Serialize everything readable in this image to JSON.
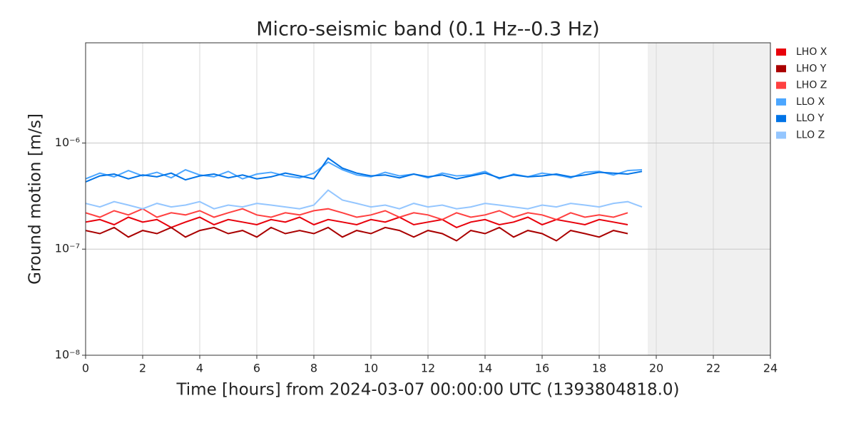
{
  "chart_data": {
    "type": "line",
    "title": "Micro-seismic band (0.1 Hz--0.3 Hz)",
    "x_label": "Time [hours] from 2024-03-07 00:00:00 UTC (1393804818.0)",
    "y_label": "Ground motion [m/s]",
    "log_y": true,
    "grid": true,
    "legend": "outside-right",
    "xlim": [
      0,
      24
    ],
    "xticks": [
      0,
      2,
      4,
      6,
      8,
      10,
      12,
      14,
      16,
      18,
      20,
      22,
      24
    ],
    "ylim": [
      1e-08,
      8.8e-06
    ],
    "yticks": [
      {
        "value": 1e-08,
        "label": "10⁻⁸"
      },
      {
        "value": 1e-07,
        "label": "10⁻⁷"
      },
      {
        "value": 1e-06,
        "label": "10⁻⁶"
      }
    ],
    "shaded_xlim": [
      19.7,
      24
    ],
    "x": [
      0,
      0.5,
      1,
      1.5,
      2,
      2.5,
      3,
      3.5,
      4,
      4.5,
      5,
      5.5,
      6,
      6.5,
      7,
      7.5,
      8,
      8.5,
      9,
      9.5,
      10,
      10.5,
      11,
      11.5,
      12,
      12.5,
      13,
      13.5,
      14,
      14.5,
      15,
      15.5,
      16,
      16.5,
      17,
      17.5,
      18,
      18.5,
      19,
      19.5
    ],
    "series": [
      {
        "name": "LHO X",
        "color": "#e8000b",
        "values": [
          1.8e-07,
          1.9e-07,
          1.7e-07,
          2e-07,
          1.8e-07,
          1.9e-07,
          1.6e-07,
          1.8e-07,
          2e-07,
          1.7e-07,
          1.9e-07,
          1.8e-07,
          1.7e-07,
          1.9e-07,
          1.8e-07,
          2e-07,
          1.7e-07,
          1.9e-07,
          1.8e-07,
          1.7e-07,
          1.9e-07,
          1.8e-07,
          2e-07,
          1.7e-07,
          1.8e-07,
          1.9e-07,
          1.6e-07,
          1.8e-07,
          1.9e-07,
          1.7e-07,
          1.8e-07,
          2e-07,
          1.7e-07,
          1.9e-07,
          1.8e-07,
          1.7e-07,
          1.9e-07,
          1.8e-07,
          1.7e-07,
          null
        ]
      },
      {
        "name": "LHO Y",
        "color": "#a90000",
        "values": [
          1.5e-07,
          1.4e-07,
          1.6e-07,
          1.3e-07,
          1.5e-07,
          1.4e-07,
          1.6e-07,
          1.3e-07,
          1.5e-07,
          1.6e-07,
          1.4e-07,
          1.5e-07,
          1.3e-07,
          1.6e-07,
          1.4e-07,
          1.5e-07,
          1.4e-07,
          1.6e-07,
          1.3e-07,
          1.5e-07,
          1.4e-07,
          1.6e-07,
          1.5e-07,
          1.3e-07,
          1.5e-07,
          1.4e-07,
          1.2e-07,
          1.5e-07,
          1.4e-07,
          1.6e-07,
          1.3e-07,
          1.5e-07,
          1.4e-07,
          1.2e-07,
          1.5e-07,
          1.4e-07,
          1.3e-07,
          1.5e-07,
          1.4e-07,
          null
        ]
      },
      {
        "name": "LHO Z",
        "color": "#ff4040",
        "values": [
          2.2e-07,
          2e-07,
          2.3e-07,
          2.1e-07,
          2.4e-07,
          2e-07,
          2.2e-07,
          2.1e-07,
          2.3e-07,
          2e-07,
          2.2e-07,
          2.4e-07,
          2.1e-07,
          2e-07,
          2.2e-07,
          2.1e-07,
          2.3e-07,
          2.4e-07,
          2.2e-07,
          2e-07,
          2.1e-07,
          2.3e-07,
          2e-07,
          2.2e-07,
          2.1e-07,
          1.9e-07,
          2.2e-07,
          2e-07,
          2.1e-07,
          2.3e-07,
          2e-07,
          2.2e-07,
          2.1e-07,
          1.9e-07,
          2.2e-07,
          2e-07,
          2.1e-07,
          2e-07,
          2.2e-07,
          null
        ]
      },
      {
        "name": "LLO X",
        "color": "#4ba6ff",
        "values": [
          4.6e-07,
          5.2e-07,
          4.8e-07,
          5.5e-07,
          4.9e-07,
          5.3e-07,
          4.7e-07,
          5.6e-07,
          5e-07,
          4.8e-07,
          5.4e-07,
          4.6e-07,
          5.1e-07,
          5.3e-07,
          4.9e-07,
          4.7e-07,
          5.2e-07,
          6.6e-07,
          5.6e-07,
          5e-07,
          4.8e-07,
          5.3e-07,
          4.9e-07,
          5.1e-07,
          4.7e-07,
          5.2e-07,
          4.9e-07,
          5e-07,
          5.4e-07,
          4.6e-07,
          5.1e-07,
          4.8e-07,
          5.2e-07,
          5e-07,
          4.7e-07,
          5.3e-07,
          5.4e-07,
          5e-07,
          5.5e-07,
          5.6e-07
        ]
      },
      {
        "name": "LLO Y",
        "color": "#0073e6",
        "values": [
          4.3e-07,
          4.9e-07,
          5.1e-07,
          4.6e-07,
          5e-07,
          4.8e-07,
          5.2e-07,
          4.5e-07,
          4.9e-07,
          5.1e-07,
          4.7e-07,
          5e-07,
          4.6e-07,
          4.8e-07,
          5.2e-07,
          4.9e-07,
          4.6e-07,
          7.2e-07,
          5.8e-07,
          5.2e-07,
          4.9e-07,
          5e-07,
          4.7e-07,
          5.1e-07,
          4.8e-07,
          5e-07,
          4.6e-07,
          4.9e-07,
          5.2e-07,
          4.7e-07,
          5e-07,
          4.8e-07,
          4.9e-07,
          5.1e-07,
          4.8e-07,
          5e-07,
          5.3e-07,
          5.2e-07,
          5.1e-07,
          5.4e-07
        ]
      },
      {
        "name": "LLO Z",
        "color": "#94c6ff",
        "values": [
          2.7e-07,
          2.5e-07,
          2.8e-07,
          2.6e-07,
          2.4e-07,
          2.7e-07,
          2.5e-07,
          2.6e-07,
          2.8e-07,
          2.4e-07,
          2.6e-07,
          2.5e-07,
          2.7e-07,
          2.6e-07,
          2.5e-07,
          2.4e-07,
          2.6e-07,
          3.6e-07,
          2.9e-07,
          2.7e-07,
          2.5e-07,
          2.6e-07,
          2.4e-07,
          2.7e-07,
          2.5e-07,
          2.6e-07,
          2.4e-07,
          2.5e-07,
          2.7e-07,
          2.6e-07,
          2.5e-07,
          2.4e-07,
          2.6e-07,
          2.5e-07,
          2.7e-07,
          2.6e-07,
          2.5e-07,
          2.7e-07,
          2.8e-07,
          2.5e-07
        ]
      }
    ]
  }
}
